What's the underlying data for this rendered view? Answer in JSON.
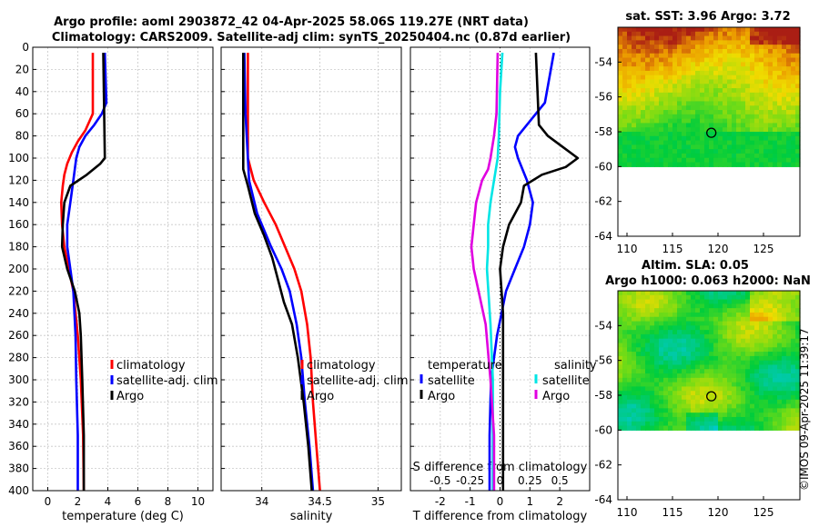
{
  "titles": {
    "line1": "Argo profile: aoml 2903872_42 04-Apr-2025 58.06S 119.27E (NRT data)",
    "line2": "Climatology: CARS2009. Satellite-adj clim: synTS_20250404.nc (0.87d earlier)",
    "sst_title": "sat. SST: 3.96 Argo: 3.72",
    "sla_title1": "Altim. SLA: 0.05",
    "sla_title2": "Argo h1000: 0.063 h2000: NaN",
    "credit": "©IMOS 09-Apr-2025 11:39:17"
  },
  "colors": {
    "climatology": "#ff0000",
    "satellite": "#0000ff",
    "argo": "#000000",
    "sal_satellite": "#00e5e5",
    "sal_argo": "#e000e0"
  },
  "chart_data": [
    {
      "type": "line",
      "name": "temperature-panel",
      "xlabel": "temperature (deg C)",
      "ylabel": "",
      "xlim": [
        -1,
        11
      ],
      "ylim": [
        400,
        0
      ],
      "xticks": [
        0,
        2,
        4,
        6,
        8,
        10
      ],
      "yticks": [
        0,
        20,
        40,
        60,
        80,
        100,
        120,
        140,
        160,
        180,
        200,
        220,
        240,
        260,
        280,
        300,
        320,
        340,
        360,
        380,
        400
      ],
      "legend": [
        "climatology",
        "satellite-adj. clim",
        "Argo"
      ],
      "series": [
        {
          "name": "climatology",
          "color": "#ff0000",
          "depth": [
            5,
            60,
            75,
            85,
            95,
            105,
            115,
            125,
            140,
            160,
            180,
            200,
            220,
            260,
            300,
            350,
            400
          ],
          "values": [
            3.0,
            3.0,
            2.5,
            2.0,
            1.6,
            1.3,
            1.1,
            1.0,
            0.9,
            0.95,
            1.1,
            1.4,
            1.7,
            2.0,
            2.2,
            2.35,
            2.4
          ]
        },
        {
          "name": "satellite-adj. clim",
          "color": "#0000ff",
          "depth": [
            5,
            50,
            60,
            70,
            80,
            90,
            100,
            110,
            120,
            140,
            160,
            180,
            200,
            220,
            260,
            300,
            350,
            400
          ],
          "values": [
            3.8,
            3.9,
            3.6,
            3.1,
            2.5,
            2.1,
            1.9,
            1.8,
            1.7,
            1.5,
            1.3,
            1.3,
            1.5,
            1.7,
            1.85,
            1.9,
            2.0,
            2.0
          ]
        },
        {
          "name": "Argo",
          "color": "#000000",
          "depth": [
            5,
            100,
            105,
            115,
            125,
            140,
            160,
            180,
            200,
            220,
            240,
            260,
            300,
            350,
            400
          ],
          "values": [
            3.7,
            3.8,
            3.5,
            2.6,
            1.5,
            1.1,
            1.0,
            0.95,
            1.3,
            1.8,
            2.1,
            2.2,
            2.3,
            2.4,
            2.4
          ]
        }
      ]
    },
    {
      "type": "line",
      "name": "salinity-panel",
      "xlabel": "salinity",
      "xlim": [
        33.65,
        35.2
      ],
      "ylim": [
        400,
        0
      ],
      "xticks": [
        34,
        34.5,
        35
      ],
      "xticklabels": [
        "34",
        "34.5",
        "35"
      ],
      "legend": [
        "climatology",
        "satellite-adj. clim",
        "Argo"
      ],
      "series": [
        {
          "name": "climatology",
          "color": "#ff0000",
          "depth": [
            5,
            100,
            120,
            140,
            160,
            180,
            200,
            220,
            250,
            280,
            320,
            360,
            400
          ],
          "values": [
            33.88,
            33.88,
            33.93,
            34.02,
            34.12,
            34.2,
            34.28,
            34.34,
            34.39,
            34.42,
            34.44,
            34.47,
            34.5
          ]
        },
        {
          "name": "satellite-adj. clim",
          "color": "#0000ff",
          "depth": [
            5,
            60,
            120,
            150,
            180,
            200,
            220,
            250,
            280,
            320,
            360,
            400
          ],
          "values": [
            33.85,
            33.86,
            33.89,
            33.96,
            34.08,
            34.17,
            34.24,
            34.3,
            34.34,
            34.37,
            34.41,
            34.44
          ]
        },
        {
          "name": "Argo",
          "color": "#000000",
          "depth": [
            5,
            60,
            110,
            125,
            150,
            170,
            190,
            210,
            230,
            250,
            280,
            320,
            360,
            400
          ],
          "values": [
            33.84,
            33.84,
            33.84,
            33.88,
            33.94,
            34.02,
            34.09,
            34.14,
            34.19,
            34.26,
            34.31,
            34.36,
            34.4,
            34.43
          ]
        }
      ]
    },
    {
      "type": "line",
      "name": "difference-panel",
      "xlabel": "T difference from climatology",
      "xlabel2": "S difference from climatology",
      "xlim": [
        -3,
        3
      ],
      "ylim": [
        400,
        0
      ],
      "xticks": [
        -2,
        -1,
        0,
        1,
        2
      ],
      "xticks2": [
        -0.5,
        -0.25,
        0,
        0.25,
        0.5
      ],
      "xticklabels2": [
        "-0.5",
        "-0.25",
        "0",
        "0.25",
        "0.5"
      ],
      "legend_temperature_title": "temperature",
      "legend_salinity_title": "salinity",
      "legend": [
        "satellite",
        "Argo",
        "satellite",
        "Argo"
      ],
      "series": [
        {
          "name": "temperature satellite",
          "color": "#0000ff",
          "depth": [
            5,
            50,
            60,
            70,
            80,
            90,
            100,
            120,
            140,
            160,
            180,
            200,
            220,
            260,
            300,
            350,
            400
          ],
          "values": [
            1.8,
            1.5,
            1.2,
            0.9,
            0.6,
            0.5,
            0.6,
            0.9,
            1.1,
            1.0,
            0.8,
            0.5,
            0.2,
            -0.1,
            -0.3,
            -0.35,
            -0.35
          ]
        },
        {
          "name": "temperature Argo",
          "color": "#000000",
          "depth": [
            5,
            70,
            80,
            90,
            100,
            108,
            115,
            125,
            140,
            160,
            180,
            200,
            240,
            300,
            350,
            400
          ],
          "values": [
            1.2,
            1.3,
            1.6,
            2.1,
            2.6,
            2.2,
            1.4,
            0.8,
            0.7,
            0.3,
            0.1,
            0.0,
            0.1,
            0.1,
            0.1,
            0.1
          ]
        },
        {
          "name": "salinity satellite",
          "color": "#00e5e5",
          "depth": [
            5,
            40,
            80,
            100,
            120,
            140,
            160,
            180,
            200,
            250,
            300,
            350,
            400
          ],
          "values": [
            0.02,
            0.0,
            -0.01,
            -0.02,
            -0.05,
            -0.08,
            -0.1,
            -0.1,
            -0.11,
            -0.08,
            -0.06,
            -0.06,
            -0.06
          ]
        },
        {
          "name": "salinity Argo",
          "color": "#e000e0",
          "depth": [
            5,
            60,
            80,
            100,
            110,
            120,
            140,
            160,
            180,
            200,
            220,
            250,
            300,
            350,
            400
          ],
          "values": [
            -0.02,
            -0.03,
            -0.05,
            -0.08,
            -0.1,
            -0.15,
            -0.2,
            -0.22,
            -0.24,
            -0.22,
            -0.18,
            -0.12,
            -0.08,
            -0.05,
            -0.05
          ]
        }
      ]
    },
    {
      "type": "heatmap",
      "name": "sst-map",
      "title": "sat. SST: 3.96 Argo: 3.72",
      "xlim": [
        109,
        129
      ],
      "ylim": [
        -64,
        -52
      ],
      "xticks": [
        110,
        115,
        120,
        125
      ],
      "yticks": [
        -54,
        -56,
        -58,
        -60,
        -62,
        -64
      ],
      "data_ylim": [
        -60,
        -52
      ],
      "float_lon": 119.27,
      "float_lat": -58.06
    },
    {
      "type": "heatmap",
      "name": "sla-map",
      "title": "Altim. SLA: 0.05",
      "xlim": [
        109,
        129
      ],
      "ylim": [
        -64,
        -52
      ],
      "xticks": [
        110,
        115,
        120,
        125
      ],
      "yticks": [
        -54,
        -56,
        -58,
        -60,
        -62,
        -64
      ],
      "data_ylim": [
        -60,
        -52
      ],
      "float_lon": 119.27,
      "float_lat": -58.06
    }
  ]
}
